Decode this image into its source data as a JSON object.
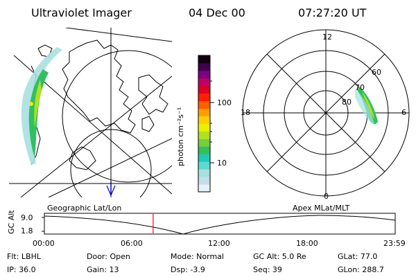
{
  "header": {
    "instrument": "Ultraviolet Imager",
    "date": "04 Dec 00",
    "time": "07:27:20 UT"
  },
  "colorbar": {
    "unit_label": "photon cm⁻²s⁻¹",
    "ticks": [
      "100",
      "10"
    ],
    "colors": [
      "#e8f0f8",
      "#c8dcec",
      "#a8e0e0",
      "#60d8d0",
      "#20c8b8",
      "#30c060",
      "#70d040",
      "#b0e020",
      "#e8f000",
      "#ffd000",
      "#ffa000",
      "#ff6000",
      "#ff2000",
      "#e00020",
      "#c00060",
      "#800080",
      "#400050",
      "#100010"
    ]
  },
  "polar_plot": {
    "hour_labels": [
      "12",
      "18",
      "6",
      "0"
    ],
    "lat_labels": [
      "60",
      "70",
      "80"
    ]
  },
  "map_labels": {
    "left": "Geographic Lat/Lon",
    "right": "Apex MLat/MLT"
  },
  "timeline": {
    "axis_label": "GC Alt",
    "y_ticks": [
      "9.0",
      "1.8"
    ],
    "x_ticks": [
      "00:00",
      "06:00",
      "12:00",
      "18:00",
      "23:59"
    ],
    "current_time_fraction": 0.31,
    "marker_color": "#ff0000"
  },
  "info": {
    "flt": "Flt: LBHL",
    "ip": "IP: 36.0",
    "door": "Door: Open",
    "gain": "Gain: 13",
    "mode": "Mode: Normal",
    "dsp": "Dsp:  -3.9",
    "gc_alt": "GC Alt: 5.0 Re",
    "seq": "Seq: 39",
    "glat": "GLat:  77.0",
    "glon": "GLon: 288.7"
  }
}
